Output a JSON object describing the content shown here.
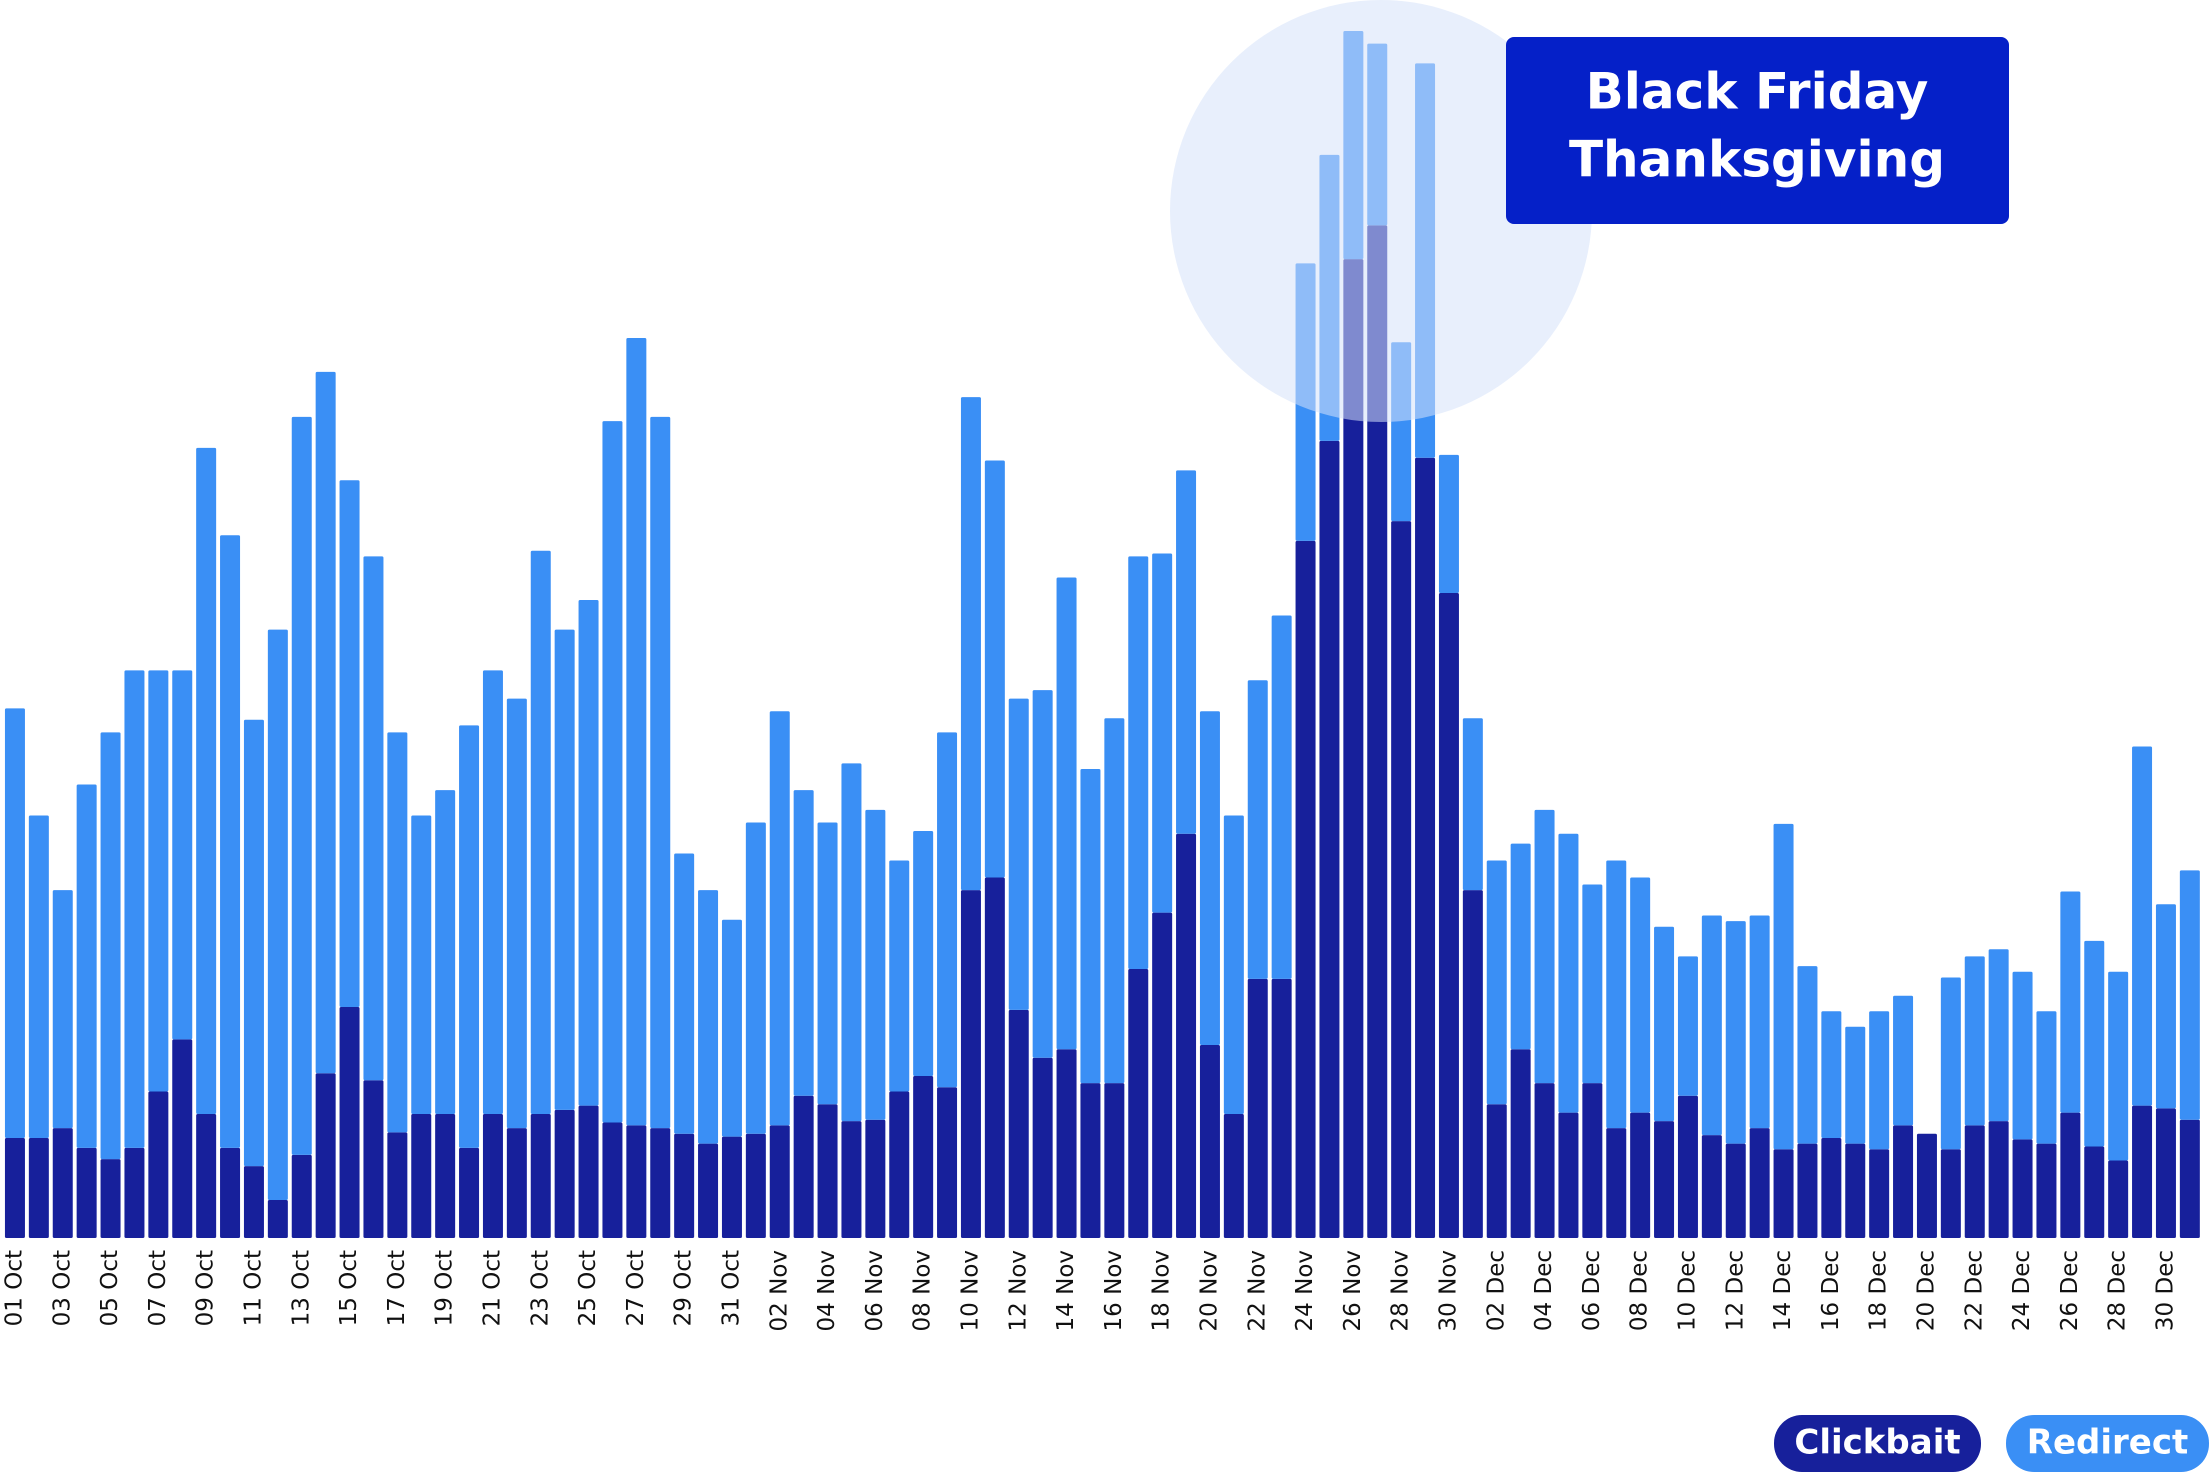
{
  "chart_data": {
    "type": "stacked-bar",
    "categories": [
      "01 Oct",
      null,
      "03 Oct",
      null,
      "05 Oct",
      null,
      "07 Oct",
      null,
      "09 Oct",
      null,
      "11 Oct",
      null,
      "13 Oct",
      null,
      "15 Oct",
      null,
      "17 Oct",
      null,
      "19 Oct",
      null,
      "21 Oct",
      null,
      "23 Oct",
      null,
      "25 Oct",
      null,
      "27 Oct",
      null,
      "29 Oct",
      null,
      "31 Oct",
      null,
      "02 Nov",
      null,
      "04 Nov",
      null,
      "06 Nov",
      null,
      "08 Nov",
      null,
      "10 Nov",
      null,
      "12 Nov",
      null,
      "14 Nov",
      null,
      "16 Nov",
      null,
      "18 Nov",
      null,
      "20 Nov",
      null,
      "22 Nov",
      null,
      "24 Nov",
      null,
      "26 Nov",
      null,
      "28 Nov",
      null,
      "30 Nov",
      null,
      "02 Dec",
      null,
      "04 Dec",
      null,
      "06 Dec",
      null,
      "08 Dec",
      null,
      "10 Dec",
      null,
      "12 Dec",
      null,
      "14 Dec",
      null,
      "16 Dec",
      null,
      "18 Dec",
      null,
      "20 Dec",
      null,
      "22 Dec",
      null,
      "24 Dec",
      null,
      "26 Dec",
      null,
      "28 Dec",
      null,
      "30 Dec",
      null
    ],
    "series": [
      {
        "name": "Clickbait",
        "color": "#17209b",
        "values": [
          71,
          71,
          78,
          64,
          56,
          64,
          104,
          141,
          88,
          64,
          51,
          27,
          59,
          117,
          164,
          112,
          75,
          88,
          88,
          64,
          88,
          78,
          88,
          91,
          94,
          82,
          80,
          78,
          74,
          67,
          72,
          74,
          80,
          101,
          95,
          83,
          84,
          104,
          115,
          107,
          247,
          256,
          162,
          128,
          134,
          110,
          110,
          191,
          231,
          287,
          137,
          88,
          184,
          184,
          495,
          566,
          695,
          719,
          509,
          554,
          458,
          247,
          95,
          134,
          110,
          89,
          110,
          78,
          89,
          83,
          101,
          73,
          67,
          78,
          63,
          67,
          71,
          67,
          63,
          80,
          74,
          63,
          80,
          83,
          70,
          67,
          89,
          65,
          55,
          94,
          92,
          84
        ]
      },
      {
        "name": "Redirect",
        "color": "#3a8ff5",
        "values": [
          305,
          229,
          169,
          258,
          303,
          339,
          299,
          262,
          473,
          435,
          317,
          405,
          524,
          498,
          374,
          372,
          284,
          212,
          230,
          300,
          315,
          305,
          400,
          341,
          359,
          498,
          559,
          505,
          199,
          180,
          154,
          221,
          294,
          217,
          200,
          254,
          220,
          164,
          174,
          252,
          350,
          296,
          221,
          261,
          335,
          223,
          259,
          293,
          255,
          258,
          237,
          212,
          212,
          258,
          197,
          203,
          162,
          129,
          127,
          280,
          98,
          122,
          173,
          146,
          194,
          198,
          141,
          190,
          167,
          138,
          99,
          156,
          158,
          151,
          231,
          126,
          90,
          83,
          98,
          92,
          0,
          122,
          120,
          122,
          119,
          94,
          157,
          146,
          134,
          255,
          145,
          177
        ]
      }
    ],
    "ylim": [
      0,
      879
    ],
    "annotation": [
      "Black Friday",
      "Thanksgiving"
    ],
    "legend": "bottom-right"
  }
}
